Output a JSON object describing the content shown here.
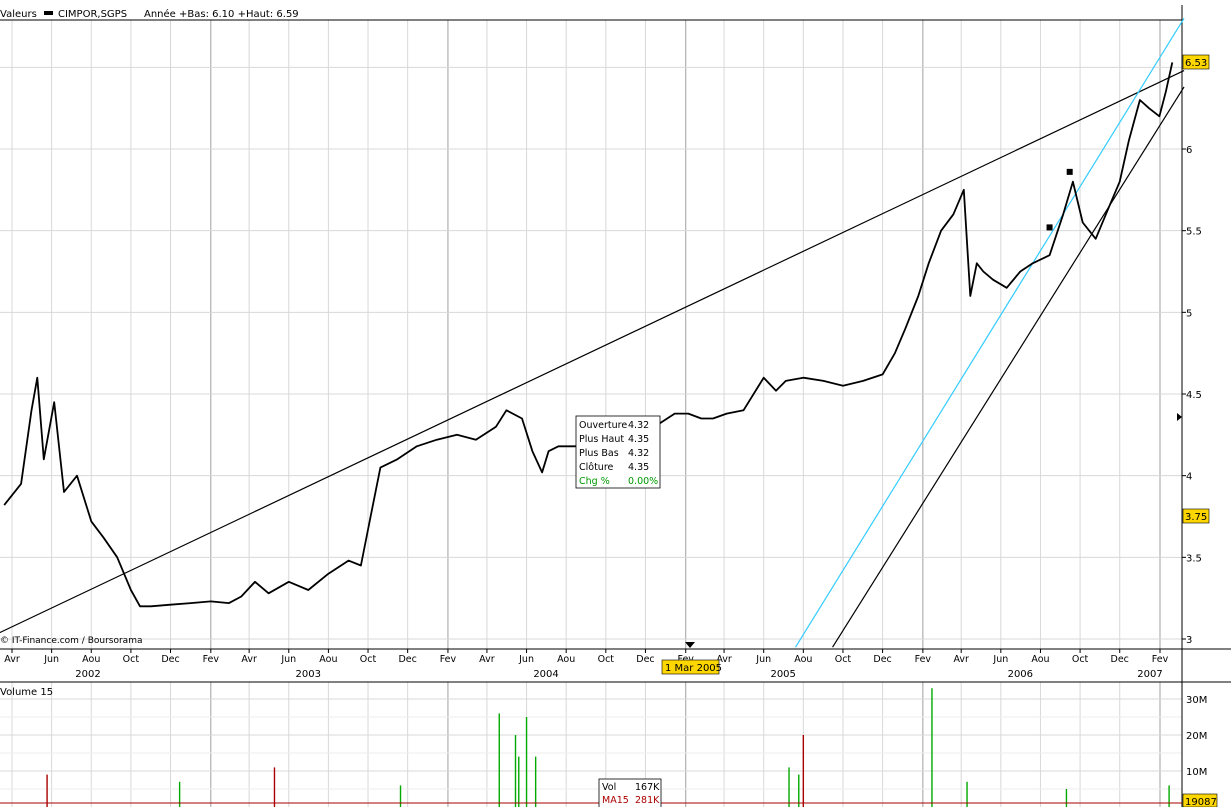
{
  "header": {
    "valeurs_label": "Valeurs",
    "series_label": "CIMPOR,SGPS",
    "stats_label": "Année +Bas: 6.10 +Haut: 6.59"
  },
  "source_label": "© IT-Finance.com / Boursorama",
  "colors": {
    "price": "#000000",
    "trend_black": "#000000",
    "trend_cyan": "#33ccff",
    "grid": "#d8d8d8",
    "grid_year": "#a0a0a0",
    "volume_up": "#00aa00",
    "volume_down": "#aa0000",
    "ma_line": "#aa0000",
    "price_badge": "#ffd700"
  },
  "chart_data": [
    {
      "type": "line",
      "title": "",
      "series": [
        {
          "name": "CIMPOR,SGPS",
          "x": [
            "2002-03-20",
            "2002-04-15",
            "2002-05-01",
            "2002-05-10",
            "2002-05-20",
            "2002-06-05",
            "2002-06-20",
            "2002-07-10",
            "2002-08-01",
            "2002-08-20",
            "2002-09-10",
            "2002-10-01",
            "2002-10-15",
            "2002-11-01",
            "2002-12-01",
            "2003-01-01",
            "2003-02-01",
            "2003-03-01",
            "2003-03-20",
            "2003-04-10",
            "2003-05-01",
            "2003-06-01",
            "2003-07-01",
            "2003-08-01",
            "2003-09-01",
            "2003-09-20",
            "2003-10-05",
            "2003-10-20",
            "2003-11-15",
            "2003-12-15",
            "2004-01-15",
            "2004-02-15",
            "2004-03-15",
            "2004-04-15",
            "2004-05-01",
            "2004-05-25",
            "2004-06-10",
            "2004-06-25",
            "2004-07-05",
            "2004-07-20",
            "2004-08-15",
            "2004-09-10",
            "2004-09-15",
            "2004-10-15",
            "2004-11-15",
            "2004-12-15",
            "2005-01-15",
            "2005-02-05",
            "2005-02-25",
            "2005-03-15",
            "2005-04-05",
            "2005-05-01",
            "2005-06-01",
            "2005-06-20",
            "2005-07-05",
            "2005-08-01",
            "2005-09-01",
            "2005-10-01",
            "2005-11-01",
            "2005-12-01",
            "2005-12-20",
            "2006-01-05",
            "2006-01-25",
            "2006-02-10",
            "2006-03-01",
            "2006-03-20",
            "2006-04-05",
            "2006-04-15",
            "2006-04-25",
            "2006-05-05",
            "2006-05-20",
            "2006-06-10",
            "2006-07-01",
            "2006-07-20",
            "2006-08-15",
            "2006-09-05",
            "2006-09-20",
            "2006-10-05",
            "2006-10-25",
            "2006-11-15",
            "2006-12-01",
            "2006-12-15",
            "2007-01-01",
            "2007-01-15",
            "2007-01-31",
            "2007-02-10",
            "2007-02-20"
          ],
          "values": [
            3.82,
            3.95,
            4.4,
            4.6,
            4.1,
            4.45,
            3.9,
            4.0,
            3.72,
            3.62,
            3.5,
            3.3,
            3.2,
            3.2,
            3.21,
            3.22,
            3.23,
            3.22,
            3.26,
            3.35,
            3.28,
            3.35,
            3.3,
            3.4,
            3.48,
            3.45,
            3.75,
            4.05,
            4.1,
            4.18,
            4.22,
            4.25,
            4.22,
            4.3,
            4.4,
            4.35,
            4.15,
            4.02,
            4.15,
            4.18,
            4.18,
            4.2,
            4.32,
            4.3,
            4.35,
            4.3,
            4.38,
            4.38,
            4.35,
            4.35,
            4.38,
            4.4,
            4.6,
            4.52,
            4.58,
            4.6,
            4.58,
            4.55,
            4.58,
            4.62,
            4.75,
            4.9,
            5.1,
            5.3,
            5.5,
            5.6,
            5.75,
            5.1,
            5.3,
            5.25,
            5.2,
            5.15,
            5.25,
            5.3,
            5.35,
            5.6,
            5.8,
            5.55,
            5.45,
            5.65,
            5.8,
            6.05,
            6.3,
            6.25,
            6.2,
            6.35,
            6.53
          ]
        }
      ],
      "x_ticks": [
        "Avr",
        "Jun",
        "Aou",
        "Oct",
        "Dec",
        "Fev",
        "Avr",
        "Jun",
        "Aou",
        "Oct",
        "Dec",
        "Fev",
        "Avr",
        "Jun",
        "Aou",
        "Oct",
        "Dec",
        "Fev",
        "Avr",
        "Jun",
        "Aou",
        "Oct",
        "Dec",
        "Fev",
        "Avr",
        "Jun",
        "Aou",
        "Oct",
        "Dec",
        "Fev"
      ],
      "years": [
        "2002",
        "2003",
        "2004",
        "2005",
        "2006",
        "2007"
      ],
      "y_ticks": [
        "3",
        "3.5",
        "4",
        "4.5",
        "5",
        "5.5",
        "6"
      ],
      "ylim": [
        2.95,
        6.85
      ],
      "last_price_label": "6.53",
      "marker_price_label": "3.75",
      "date_marker_label": "1 Mar 2005",
      "tooltip": {
        "rows": [
          {
            "label": "Ouverture",
            "value": "4.32"
          },
          {
            "label": "Plus Haut",
            "value": "4.35"
          },
          {
            "label": "Plus Bas",
            "value": "4.32"
          },
          {
            "label": "Clôture",
            "value": "4.35"
          },
          {
            "label": "Chg %",
            "value": "0.00%"
          }
        ]
      },
      "trendlines": [
        {
          "color": "black",
          "from": [
            "2002-01-25",
            2.95
          ],
          "to": [
            "2007-03-10",
            6.48
          ]
        },
        {
          "color": "cyan",
          "from": [
            "2005-07-20",
            2.95
          ],
          "to": [
            "2007-03-10",
            6.8
          ]
        },
        {
          "color": "black",
          "from": [
            "2005-09-15",
            2.95
          ],
          "to": [
            "2007-03-10",
            6.38
          ]
        }
      ],
      "square_markers": [
        {
          "x": "2006-08-15",
          "y": 5.52
        },
        {
          "x": "2006-09-15",
          "y": 5.86
        }
      ]
    },
    {
      "type": "bar",
      "title": "Volume 15",
      "y_ticks": [
        "10M",
        "20M",
        "30M"
      ],
      "ylim": [
        0,
        33
      ],
      "last_volume_label": "19087",
      "spikes": [
        {
          "x": "2002-05-25",
          "v": 9,
          "up": false
        },
        {
          "x": "2002-12-15",
          "v": 7,
          "up": true
        },
        {
          "x": "2003-05-10",
          "v": 11,
          "up": false
        },
        {
          "x": "2003-11-20",
          "v": 6,
          "up": true
        },
        {
          "x": "2004-04-20",
          "v": 26,
          "up": true
        },
        {
          "x": "2004-05-15",
          "v": 20,
          "up": true
        },
        {
          "x": "2004-05-20",
          "v": 14,
          "up": true
        },
        {
          "x": "2004-06-01",
          "v": 25,
          "up": true
        },
        {
          "x": "2004-06-15",
          "v": 14,
          "up": true
        },
        {
          "x": "2005-07-10",
          "v": 11,
          "up": true
        },
        {
          "x": "2005-07-25",
          "v": 9,
          "up": true
        },
        {
          "x": "2005-08-01",
          "v": 20,
          "up": false
        },
        {
          "x": "2006-02-15",
          "v": 33,
          "up": true
        },
        {
          "x": "2006-04-10",
          "v": 7,
          "up": true
        },
        {
          "x": "2006-09-10",
          "v": 5,
          "up": true
        },
        {
          "x": "2007-02-15",
          "v": 6,
          "up": true
        }
      ],
      "tooltip": {
        "rows": [
          {
            "label": "Vol",
            "value": "167K"
          },
          {
            "label": "MA15",
            "value": "281K"
          }
        ]
      }
    }
  ]
}
